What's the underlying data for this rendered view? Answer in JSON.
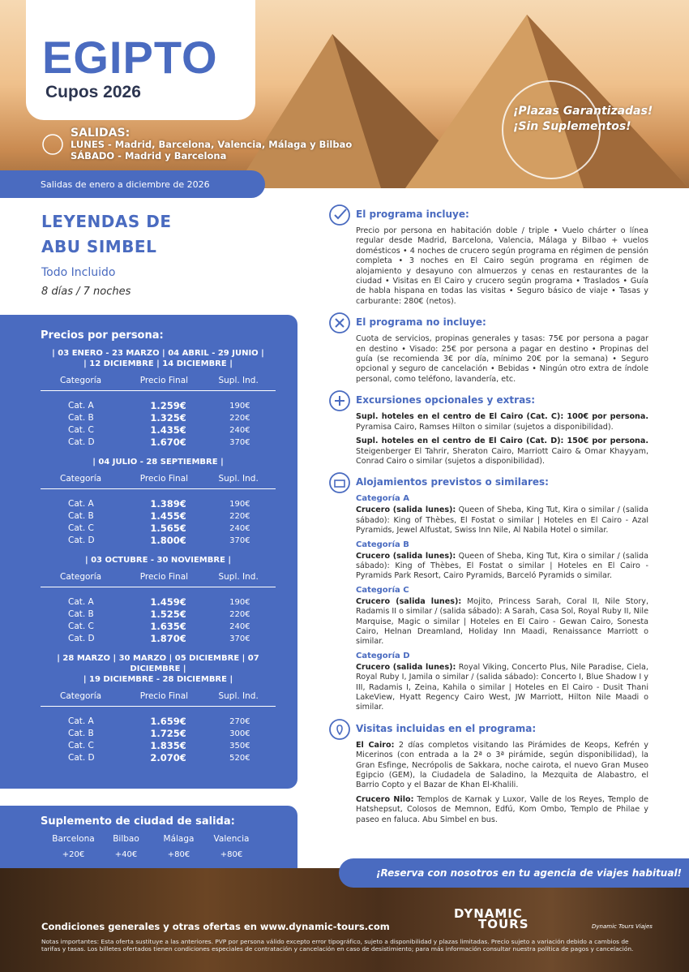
{
  "header": {
    "title": "EGIPTO",
    "subtitle": "Cupos 2026",
    "badge": [
      "¡Plazas Garantizadas!",
      "¡Sin Suplementos!"
    ],
    "departures": {
      "label": "SALIDAS:",
      "lines": [
        "LUNES - Madrid, Barcelona, Valencia, Málaga y Bilbao",
        "SÁBADO - Madrid y Barcelona"
      ]
    }
  },
  "period": "Salidas de enero a diciembre de 2026",
  "tour": {
    "name": [
      "LEYENDAS DE",
      "ABU SIMBEL"
    ],
    "regime": "Todo Incluido",
    "duration": "8 días / 7 noches"
  },
  "prices": {
    "title": "Precios por persona:",
    "headers": [
      "Categoría",
      "Precio Final",
      "Supl. Ind."
    ],
    "blocks": [
      {
        "periods": [
          "| 03 ENERO - 23 MARZO | 04 ABRIL - 29 JUNIO |",
          "| 12 DICIEMBRE | 14 DICIEMBRE |"
        ],
        "rows": [
          [
            "Cat. A",
            "1.259€",
            "190€"
          ],
          [
            "Cat. B",
            "1.325€",
            "220€"
          ],
          [
            "Cat. C",
            "1.435€",
            "240€"
          ],
          [
            "Cat. D",
            "1.670€",
            "370€"
          ]
        ]
      },
      {
        "periods": [
          "| 04 JULIO - 28 SEPTIEMBRE |"
        ],
        "rows": [
          [
            "Cat. A",
            "1.389€",
            "190€"
          ],
          [
            "Cat. B",
            "1.455€",
            "220€"
          ],
          [
            "Cat. C",
            "1.565€",
            "240€"
          ],
          [
            "Cat. D",
            "1.800€",
            "370€"
          ]
        ]
      },
      {
        "periods": [
          "| 03 OCTUBRE - 30 NOVIEMBRE |"
        ],
        "rows": [
          [
            "Cat. A",
            "1.459€",
            "190€"
          ],
          [
            "Cat. B",
            "1.525€",
            "220€"
          ],
          [
            "Cat. C",
            "1.635€",
            "240€"
          ],
          [
            "Cat. D",
            "1.870€",
            "370€"
          ]
        ]
      },
      {
        "periods": [
          "| 28 MARZO | 30 MARZO | 05 DICIEMBRE | 07 DICIEMBRE |",
          "| 19 DICIEMBRE - 28 DICIEMBRE |"
        ],
        "rows": [
          [
            "Cat. A",
            "1.659€",
            "270€"
          ],
          [
            "Cat. B",
            "1.725€",
            "300€"
          ],
          [
            "Cat. C",
            "1.835€",
            "350€"
          ],
          [
            "Cat. D",
            "2.070€",
            "520€"
          ]
        ]
      }
    ]
  },
  "supplement": {
    "title": "Suplemento de ciudad de salida:",
    "cities": [
      "Barcelona",
      "Bilbao",
      "Málaga",
      "Valencia"
    ],
    "values": [
      "+20€",
      "+40€",
      "+80€",
      "+80€"
    ]
  },
  "sections": [
    {
      "title": "El programa incluye:",
      "paragraphs": [
        {
          "text": "Precio por persona en habitación doble / triple • Vuelo chárter o línea regular desde Madrid, Barcelona, Valencia, Málaga y Bilbao + vuelos domésticos • 4 noches de crucero según programa en régimen de pensión completa • 3 noches en El Cairo según programa en régimen de alojamiento y desayuno con almuerzos y cenas en restaurantes de la ciudad • Visitas en El Cairo y crucero según programa • Traslados • Guía de habla hispana en todas las visitas • Seguro básico de viaje • Tasas y carburante: 280€ (netos)."
        }
      ]
    },
    {
      "title": "El programa no incluye:",
      "paragraphs": [
        {
          "text": "Cuota de servicios, propinas generales y tasas: 75€ por persona a pagar en destino • Visado: 25€ por persona a pagar en destino • Propinas del guía (se recomienda 3€ por día, mínimo 20€ por la semana) • Seguro opcional y seguro de cancelación • Bebidas • Ningún otro extra de índole personal, como teléfono, lavandería, etc."
        }
      ]
    },
    {
      "title": "Excursiones opcionales y extras:",
      "paragraphs": [
        {
          "lead": "Supl. hoteles en el centro de El Cairo (Cat. C): 100€ por persona.",
          "text": "Pyramisa Cairo, Ramses Hilton o similar (sujetos a disponibilidad)."
        },
        {
          "lead": "Supl. hoteles en el centro de El Cairo (Cat. D): 150€ por persona.",
          "text": "Steigenberger El Tahrir, Sheraton Cairo, Marriott Cairo & Omar Khayyam, Conrad Cairo o similar (sujetos a disponibilidad)."
        }
      ]
    },
    {
      "title": "Alojamientos previstos o similares:",
      "paragraphs": [
        {
          "category": "Categoría A",
          "lead": "Crucero (salida lunes):",
          "text": "Queen of Sheba, King Tut, Kira o similar / (salida sábado): King of Thèbes, El Fostat o similar | Hoteles en El Cairo - Azal Pyramids, Jewel Alfustat, Swiss Inn Nile, Al Nabila Hotel o similar."
        },
        {
          "category": "Categoría B",
          "lead": "Crucero (salida lunes):",
          "text": "Queen of Sheba, King Tut, Kira o similar / (salida sábado): King of Thèbes, El Fostat o similar | Hoteles en El Cairo - Pyramids Park Resort, Cairo Pyramids, Barceló Pyramids o similar."
        },
        {
          "category": "Categoría C",
          "lead": "Crucero (salida lunes):",
          "text": "Mojito, Princess Sarah, Coral II, Nile Story, Radamis II o similar / (salida sábado): A Sarah, Casa Sol, Royal Ruby II, Nile Marquise, Magic o similar | Hoteles en El Cairo - Gewan Cairo, Sonesta Cairo, Helnan Dreamland, Holiday Inn Maadi, Renaissance Marriott o similar."
        },
        {
          "category": "Categoría D",
          "lead": "Crucero (salida lunes):",
          "text": "Royal Viking, Concerto Plus, Nile Paradise, Ciela, Royal Ruby I, Jamila o similar / (salida sábado): Concerto I, Blue Shadow I y III, Radamis I, Zeina, Kahila o similar | Hoteles en El Cairo - Dusit Thani LakeView, Hyatt Regency Cairo West, JW Marriott, Hilton Nile Maadi o similar."
        }
      ]
    },
    {
      "title": "Visitas incluidas en el programa:",
      "paragraphs": [
        {
          "lead": "El Cairo:",
          "text": "2 días completos visitando las Pirámides de Keops, Kefrén y Micerinos (con entrada a la 2ª o 3ª pirámide, según disponibilidad), la Gran Esfinge, Necrópolis de Sakkara, noche cairota, el nuevo Gran Museo Egipcio (GEM), la Ciudadela de Saladino, la Mezquita de Alabastro, el Barrio Copto y el Bazar de Khan El-Khalili."
        },
        {
          "lead": "Crucero Nilo:",
          "text": "Templos de Karnak y Luxor, Valle de los Reyes, Templo de Hatshepsut, Colosos de Memnon, Edfú, Kom Ombo, Templo de Philae y paseo en faluca. Abu Simbel en bus."
        }
      ]
    }
  ],
  "footer": {
    "banner": "¡Reserva con nosotros en tu agencia de viajes habitual!",
    "conditions": "Condiciones generales y otras ofertas en www.dynamic-tours.com",
    "notes": "Notas importantes: Esta oferta sustituye a las anteriores. PVP por persona válido excepto error tipográfico, sujeto a disponibilidad y plazas limitadas. Precio sujeto a variación debido a cambios de tarifas y tasas. Los billetes ofertados tienen condiciones especiales de contratación y cancelación en caso de desistimiento; para más información consultar nuestra política de pagos y cancelación.",
    "logo": [
      "DYNAMIC",
      "TOURS"
    ],
    "social": "Dynamic Tours Viajes"
  }
}
